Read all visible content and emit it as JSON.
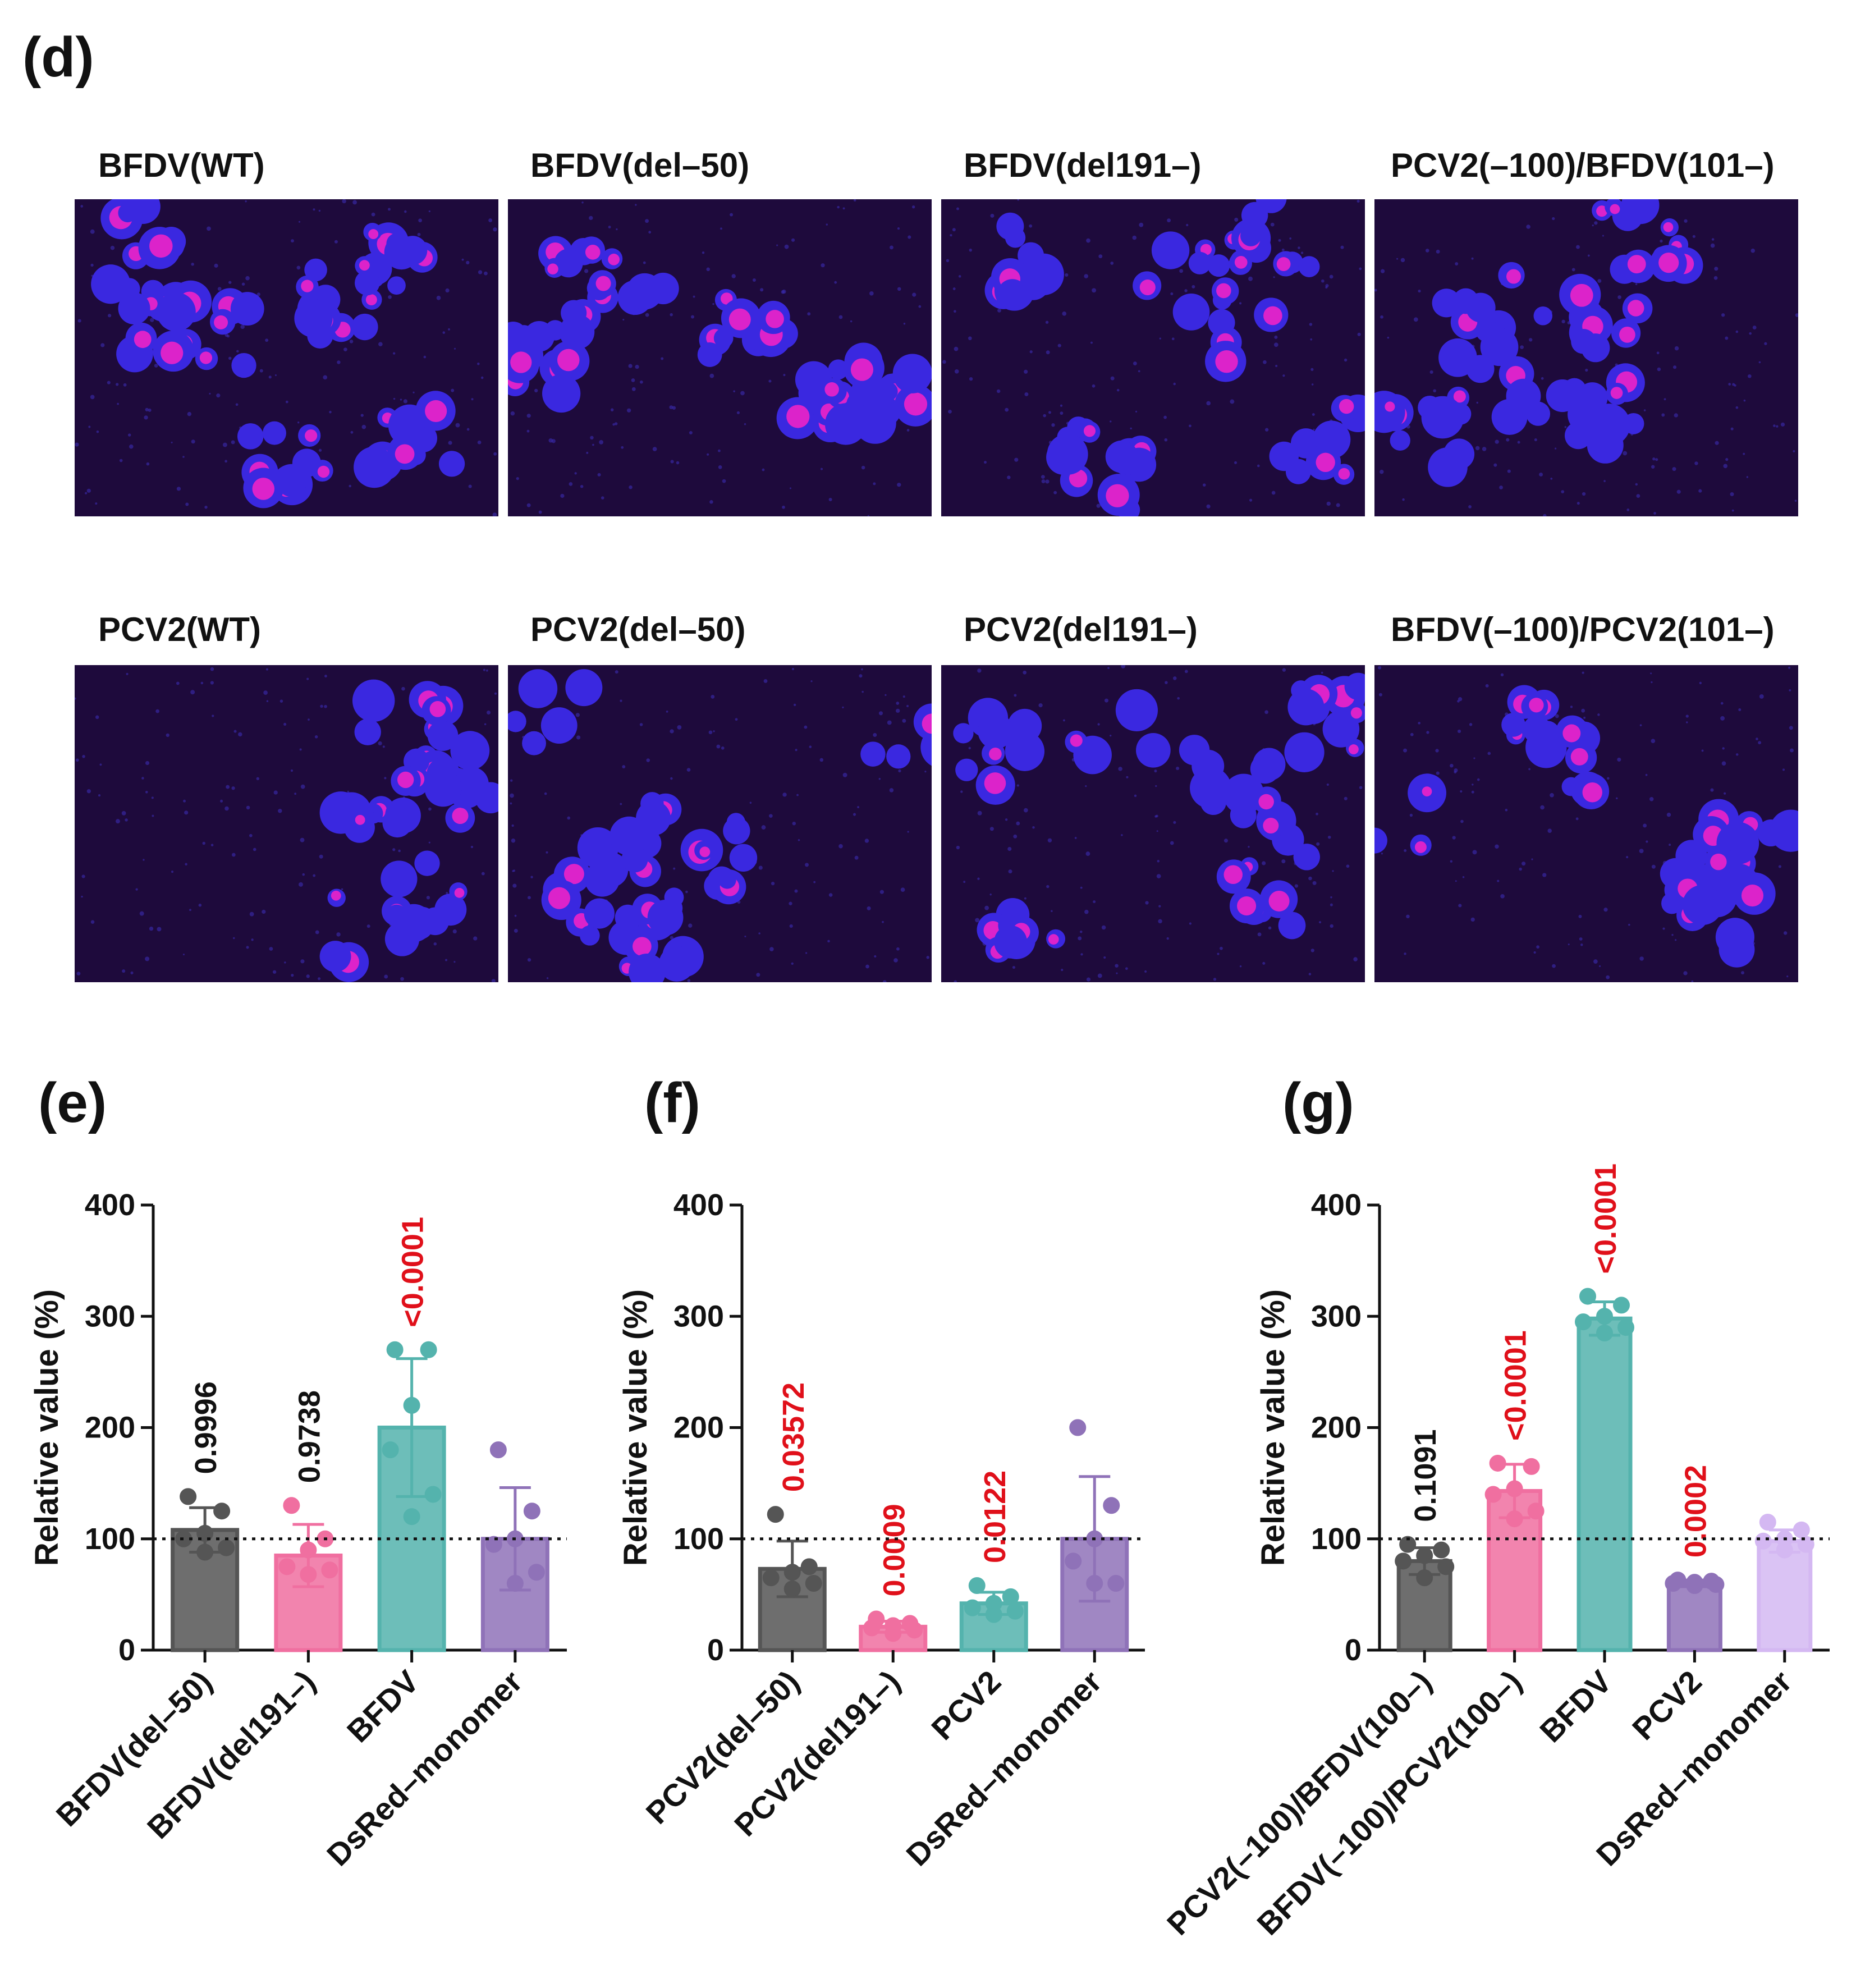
{
  "panels": {
    "d": "(d)",
    "e": "(e)",
    "f": "(f)",
    "g": "(g)"
  },
  "micrographs": [
    {
      "label": "BFDV(WT)"
    },
    {
      "label": "BFDV(del–50)"
    },
    {
      "label": "BFDV(del191–)"
    },
    {
      "label": "PCV2(–100)/BFDV(101–)"
    },
    {
      "label": "PCV2(WT)"
    },
    {
      "label": "PCV2(del–50)"
    },
    {
      "label": "PCV2(del191–)"
    },
    {
      "label": "BFDV(–100)/PCV2(101–)"
    }
  ],
  "colors": {
    "black": "#555555",
    "pink": "#f06fa0",
    "teal": "#54b3ad",
    "purple": "#8f72b8",
    "lilac": "#d4b8f2",
    "significant": "#e0101a",
    "ns": "#111111",
    "micro_bg": "#1e0a3c",
    "cell": "#3a28e0",
    "nucleus": "#ee22c8"
  },
  "chart_data": [
    {
      "type": "bar",
      "panel": "(e)",
      "ylabel": "Relative value (%)",
      "ylim": [
        0,
        400
      ],
      "yticks": [
        0,
        100,
        200,
        300,
        400
      ],
      "reference_line": 100,
      "categories": [
        "BFDV(del–50)",
        "BFDV(del191–)",
        "BFDV",
        "DsRed–monomer"
      ],
      "values": [
        108,
        85,
        200,
        100
      ],
      "errors": [
        20,
        28,
        62,
        46
      ],
      "points": [
        [
          138,
          125,
          105,
          100,
          92,
          88
        ],
        [
          130,
          100,
          90,
          75,
          72,
          68
        ],
        [
          270,
          270,
          220,
          180,
          140,
          120
        ],
        [
          180,
          125,
          100,
          95,
          70,
          60
        ]
      ],
      "pvalues": [
        "0.9996",
        "0.9738",
        "<0.0001",
        ""
      ],
      "pvalue_significant": [
        false,
        false,
        true,
        false
      ],
      "series_colors": [
        "black",
        "pink",
        "teal",
        "purple"
      ]
    },
    {
      "type": "bar",
      "panel": "(f)",
      "ylabel": "Relative value (%)",
      "ylim": [
        0,
        400
      ],
      "yticks": [
        0,
        100,
        200,
        300,
        400
      ],
      "reference_line": 100,
      "categories": [
        "PCV2(del–50)",
        "PCV2(del191–)",
        "PCV2",
        "DsRed–monomer"
      ],
      "values": [
        73,
        21,
        42,
        100
      ],
      "errors": [
        25,
        5,
        10,
        56
      ],
      "points": [
        [
          122,
          75,
          70,
          65,
          60,
          55
        ],
        [
          28,
          24,
          22,
          20,
          18,
          15
        ],
        [
          58,
          48,
          42,
          38,
          35,
          32
        ],
        [
          200,
          130,
          100,
          80,
          60,
          60
        ]
      ],
      "pvalues": [
        "0.03572",
        "0.0009",
        "0.0122",
        ""
      ],
      "pvalue_significant": [
        true,
        true,
        true,
        false
      ],
      "series_colors": [
        "black",
        "pink",
        "teal",
        "purple"
      ]
    },
    {
      "type": "bar",
      "panel": "(g)",
      "ylabel": "Relative value (%)",
      "ylim": [
        0,
        400
      ],
      "yticks": [
        0,
        100,
        200,
        300,
        400
      ],
      "reference_line": 100,
      "categories": [
        "PCV2(–100)/BFDV(100–)",
        "BFDV(–100)/PCV2(100–)",
        "BFDV",
        "PCV2",
        "DsRed–monomer"
      ],
      "values": [
        80,
        143,
        298,
        60,
        98
      ],
      "errors": [
        12,
        24,
        15,
        3,
        10
      ],
      "points": [
        [
          95,
          90,
          85,
          80,
          75,
          65
        ],
        [
          168,
          165,
          145,
          140,
          125,
          118
        ],
        [
          318,
          310,
          300,
          295,
          290,
          285
        ],
        [
          63,
          62,
          61,
          60,
          59,
          58
        ],
        [
          115,
          108,
          100,
          98,
          95,
          90
        ]
      ],
      "pvalues": [
        "0.1091",
        "<0.0001",
        "<0.0001",
        "0.0002",
        ""
      ],
      "pvalue_significant": [
        false,
        true,
        true,
        true,
        false
      ],
      "series_colors": [
        "black",
        "pink",
        "teal",
        "purple",
        "lilac"
      ]
    }
  ]
}
